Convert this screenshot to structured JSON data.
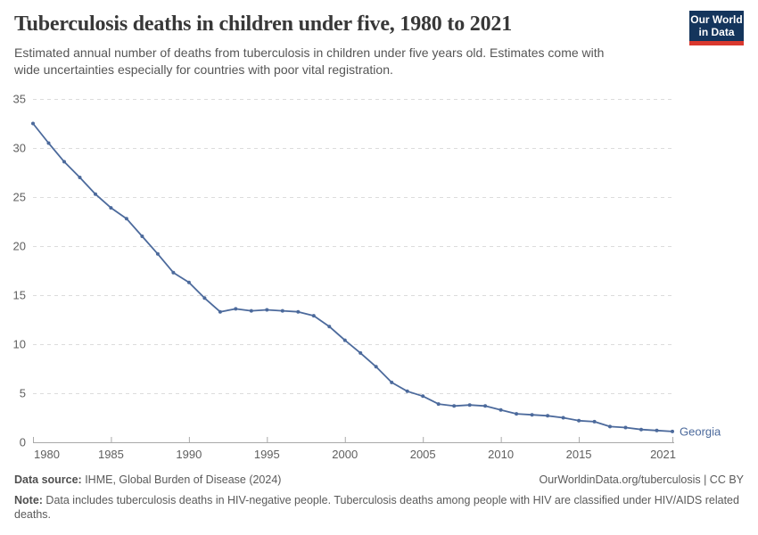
{
  "header": {
    "title": "Tuberculosis deaths in children under five, 1980 to 2021",
    "subtitle_line1": "Estimated annual number of deaths from tuberculosis in children under five years old. Estimates come with",
    "subtitle_line2": "wide uncertainties especially for countries with poor vital registration.",
    "logo": {
      "line1": "Our World",
      "line2": "in Data",
      "navy": "#14355c",
      "red": "#d9382e"
    }
  },
  "chart_data": {
    "type": "line",
    "title": "Tuberculosis deaths in children under five, 1980 to 2021",
    "entity_label": "Georgia",
    "x": [
      1980,
      1981,
      1982,
      1983,
      1984,
      1985,
      1986,
      1987,
      1988,
      1989,
      1990,
      1991,
      1992,
      1993,
      1994,
      1995,
      1996,
      1997,
      1998,
      1999,
      2000,
      2001,
      2002,
      2003,
      2004,
      2005,
      2006,
      2007,
      2008,
      2009,
      2010,
      2011,
      2012,
      2013,
      2014,
      2015,
      2016,
      2017,
      2018,
      2019,
      2020,
      2021
    ],
    "series": [
      {
        "name": "Georgia",
        "values": [
          32.5,
          30.5,
          28.6,
          27.0,
          25.3,
          23.9,
          22.8,
          21.0,
          19.2,
          17.3,
          16.3,
          14.7,
          13.3,
          13.6,
          13.4,
          13.5,
          13.4,
          13.3,
          12.9,
          11.8,
          10.4,
          9.1,
          7.7,
          6.1,
          5.2,
          4.7,
          3.9,
          3.7,
          3.8,
          3.7,
          3.3,
          2.9,
          2.8,
          2.7,
          2.5,
          2.2,
          2.1,
          1.6,
          1.5,
          1.3,
          1.2,
          1.1
        ]
      }
    ],
    "xlabel": "",
    "ylabel": "",
    "ylim": [
      0,
      35
    ],
    "yticks": [
      0,
      5,
      10,
      15,
      20,
      25,
      30,
      35
    ],
    "xticks": [
      1980,
      1985,
      1990,
      1995,
      2000,
      2005,
      2010,
      2015,
      2021
    ],
    "grid": "horizontal-dashed",
    "legend_position": "end-of-line",
    "line_color": "#4c6a9c",
    "axis_color": "#a9a9a9",
    "grid_color": "#dcdcdc",
    "tick_label_color": "#5f5f5f"
  },
  "footer": {
    "data_source_label": "Data source:",
    "data_source_value": " IHME, Global Burden of Disease (2024)",
    "attribution": "OurWorldinData.org/tuberculosis | CC BY",
    "note_label": "Note:",
    "note_text": " Data includes tuberculosis deaths in HIV-negative people. Tuberculosis deaths among people with HIV are classified under HIV/AIDS related deaths."
  }
}
